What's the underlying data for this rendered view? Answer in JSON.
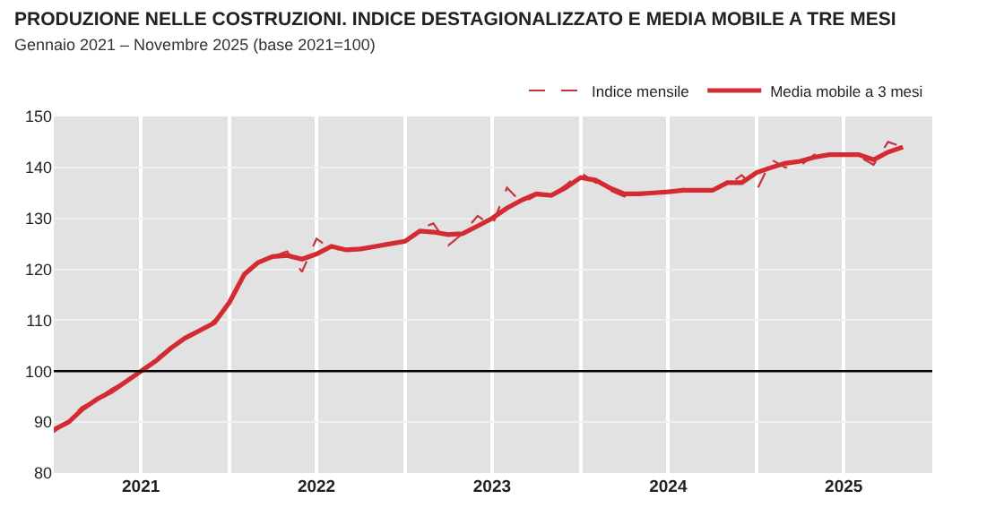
{
  "chart_data": {
    "type": "line",
    "title": "PRODUZIONE NELLE COSTRUZIONI. INDICE DESTAGIONALIZZATO E MEDIA MOBILE A TRE MESI",
    "subtitle": "Gennaio 2021 – Novembre 2025 (base 2021=100)",
    "x": [
      "2021-01",
      "2021-02",
      "2021-03",
      "2021-04",
      "2021-05",
      "2021-06",
      "2021-07",
      "2021-08",
      "2021-09",
      "2021-10",
      "2021-11",
      "2021-12",
      "2022-01",
      "2022-02",
      "2022-03",
      "2022-04",
      "2022-05",
      "2022-06",
      "2022-07",
      "2022-08",
      "2022-09",
      "2022-10",
      "2022-11",
      "2022-12",
      "2023-01",
      "2023-02",
      "2023-03",
      "2023-04",
      "2023-05",
      "2023-06",
      "2023-07",
      "2023-08",
      "2023-09",
      "2023-10",
      "2023-11",
      "2023-12",
      "2024-01",
      "2024-02",
      "2024-03",
      "2024-04",
      "2024-05",
      "2024-06",
      "2024-07",
      "2024-08",
      "2024-09",
      "2024-10",
      "2024-11",
      "2024-12",
      "2025-01",
      "2025-02",
      "2025-03",
      "2025-04",
      "2025-05",
      "2025-06",
      "2025-07",
      "2025-08",
      "2025-09",
      "2025-10",
      "2025-11"
    ],
    "series": [
      {
        "name": "Indice mensile",
        "color": "#c8323a",
        "line_style": "dashed",
        "values": [
          88,
          90.5,
          93,
          94.5,
          96.5,
          98,
          100,
          102.5,
          104.5,
          106.5,
          108,
          110,
          113,
          119.5,
          121,
          122.5,
          123.5,
          119.5,
          126,
          124,
          123.8,
          124,
          124.5,
          125,
          125.5,
          128,
          129,
          124.7,
          127,
          130.5,
          128.5,
          136,
          133,
          134.5,
          134.5,
          136.5,
          139,
          137,
          135.5,
          134.3,
          134.8,
          135,
          135.2,
          135.8,
          135.5,
          135.5,
          136.5,
          138.5,
          135.5,
          141.5,
          140,
          140.3,
          142.5,
          142.5,
          142.5,
          142.2,
          140.5,
          145,
          144
        ]
      },
      {
        "name": "Media mobile a 3 mesi",
        "color": "#d42a32",
        "line_style": "solid",
        "values": [
          88.5,
          90,
          92.5,
          94.5,
          96,
          98,
          100,
          102,
          104.5,
          106.5,
          108,
          109.5,
          113.5,
          119,
          121.3,
          122.5,
          122.7,
          122,
          123,
          124.5,
          123.8,
          124,
          124.5,
          125,
          125.5,
          127.5,
          127.3,
          126.8,
          127,
          128.5,
          130,
          132,
          133.6,
          134.8,
          134.5,
          136,
          138,
          137.5,
          136,
          134.8,
          134.8,
          135,
          135.2,
          135.5,
          135.5,
          135.5,
          137,
          137,
          139,
          140,
          140.8,
          141.2,
          142,
          142.5,
          142.5,
          142.5,
          141.5,
          143,
          144
        ]
      }
    ],
    "xlim": [
      "2021-01",
      "2026-01"
    ],
    "xticks": [
      {
        "value": "2021-07",
        "label": "2021"
      },
      {
        "value": "2022-01",
        "label": null
      },
      {
        "value": "2022-07",
        "label": "2022"
      },
      {
        "value": "2023-01",
        "label": null
      },
      {
        "value": "2023-07",
        "label": "2023"
      },
      {
        "value": "2024-01",
        "label": null
      },
      {
        "value": "2024-07",
        "label": "2024"
      },
      {
        "value": "2025-01",
        "label": null
      },
      {
        "value": "2025-07",
        "label": "2025"
      }
    ],
    "ylim": [
      80,
      150
    ],
    "yticks": [
      80,
      90,
      100,
      110,
      120,
      130,
      140,
      150
    ],
    "ref_lines": [
      {
        "axis": "y",
        "value": 100,
        "color": "#000000"
      }
    ],
    "grid": true,
    "legend": "top right",
    "marker": "none"
  }
}
